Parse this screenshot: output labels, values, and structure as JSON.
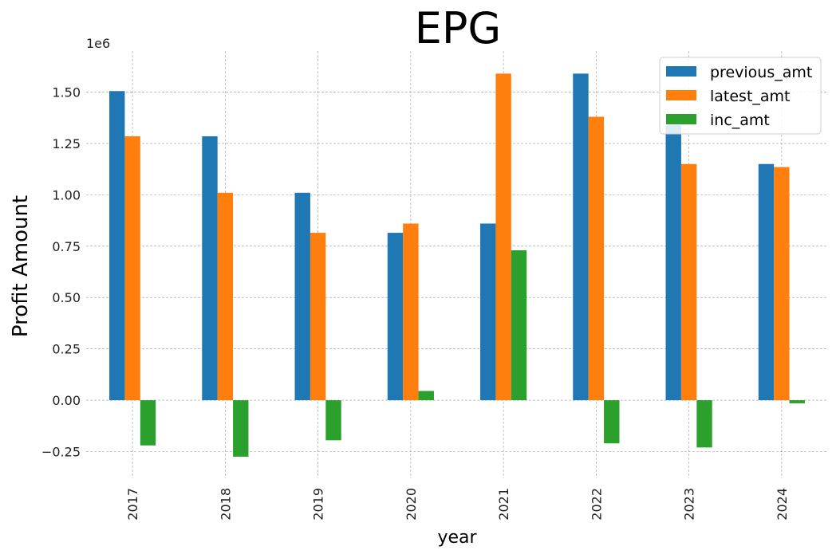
{
  "chart_data": {
    "type": "bar",
    "title": "EPG",
    "xlabel": "year",
    "ylabel": "Profit Amount",
    "offset_label": "1e6",
    "categories": [
      "2017",
      "2018",
      "2019",
      "2020",
      "2021",
      "2022",
      "2023",
      "2024"
    ],
    "series": [
      {
        "name": "previous_amt",
        "color": "#1f77b4",
        "values": [
          1505000,
          1285000,
          1010000,
          815000,
          860000,
          1590000,
          1340000,
          1150000
        ]
      },
      {
        "name": "latest_amt",
        "color": "#ff7f0e",
        "values": [
          1285000,
          1010000,
          815000,
          860000,
          1590000,
          1380000,
          1150000,
          1135000
        ]
      },
      {
        "name": "inc_amt",
        "color": "#2ca02c",
        "values": [
          -220000,
          -275000,
          -195000,
          45000,
          730000,
          -210000,
          -230000,
          -15000
        ]
      }
    ],
    "yticks": [
      -0.25,
      0.0,
      0.25,
      0.5,
      0.75,
      1.0,
      1.25,
      1.5
    ],
    "ytick_labels": [
      "−0.25",
      "0.00",
      "0.25",
      "0.50",
      "0.75",
      "1.00",
      "1.25",
      "1.50"
    ],
    "ylim": [
      -0.38,
      1.7
    ],
    "grid": true,
    "legend_position": "top-right"
  }
}
